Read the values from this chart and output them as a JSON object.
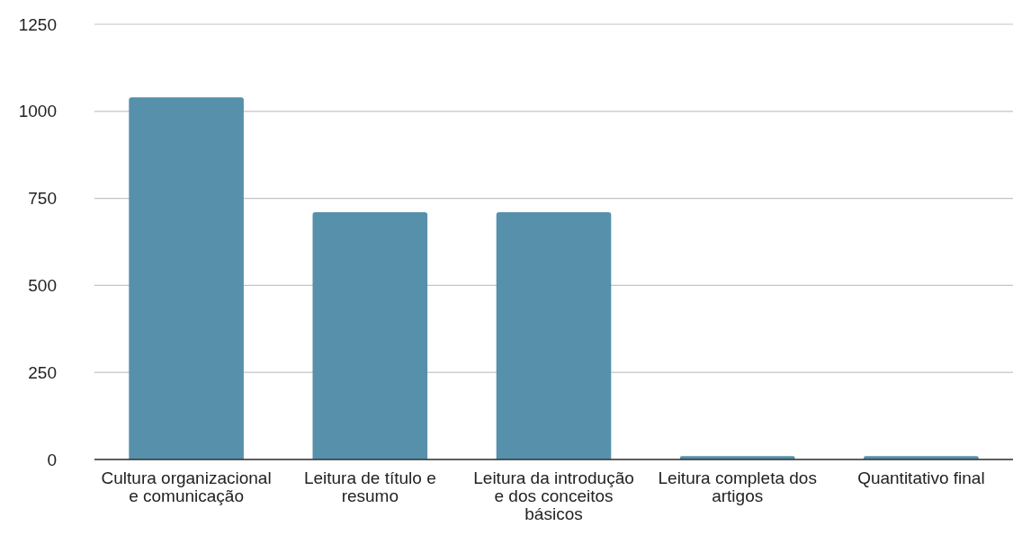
{
  "chart_data": {
    "type": "bar",
    "categories": [
      "Cultura organizacional e comunicação",
      "Leitura de título e resumo",
      "Leitura da introdução e dos conceitos básicos",
      "Leitura completa dos artigos",
      "Quantitativo final"
    ],
    "values": [
      1040,
      710,
      710,
      10,
      10
    ],
    "color": "#5790ab",
    "ylim": [
      0,
      1250
    ],
    "yticks": [
      0,
      250,
      500,
      750,
      1000,
      1250
    ],
    "grid": "y"
  }
}
